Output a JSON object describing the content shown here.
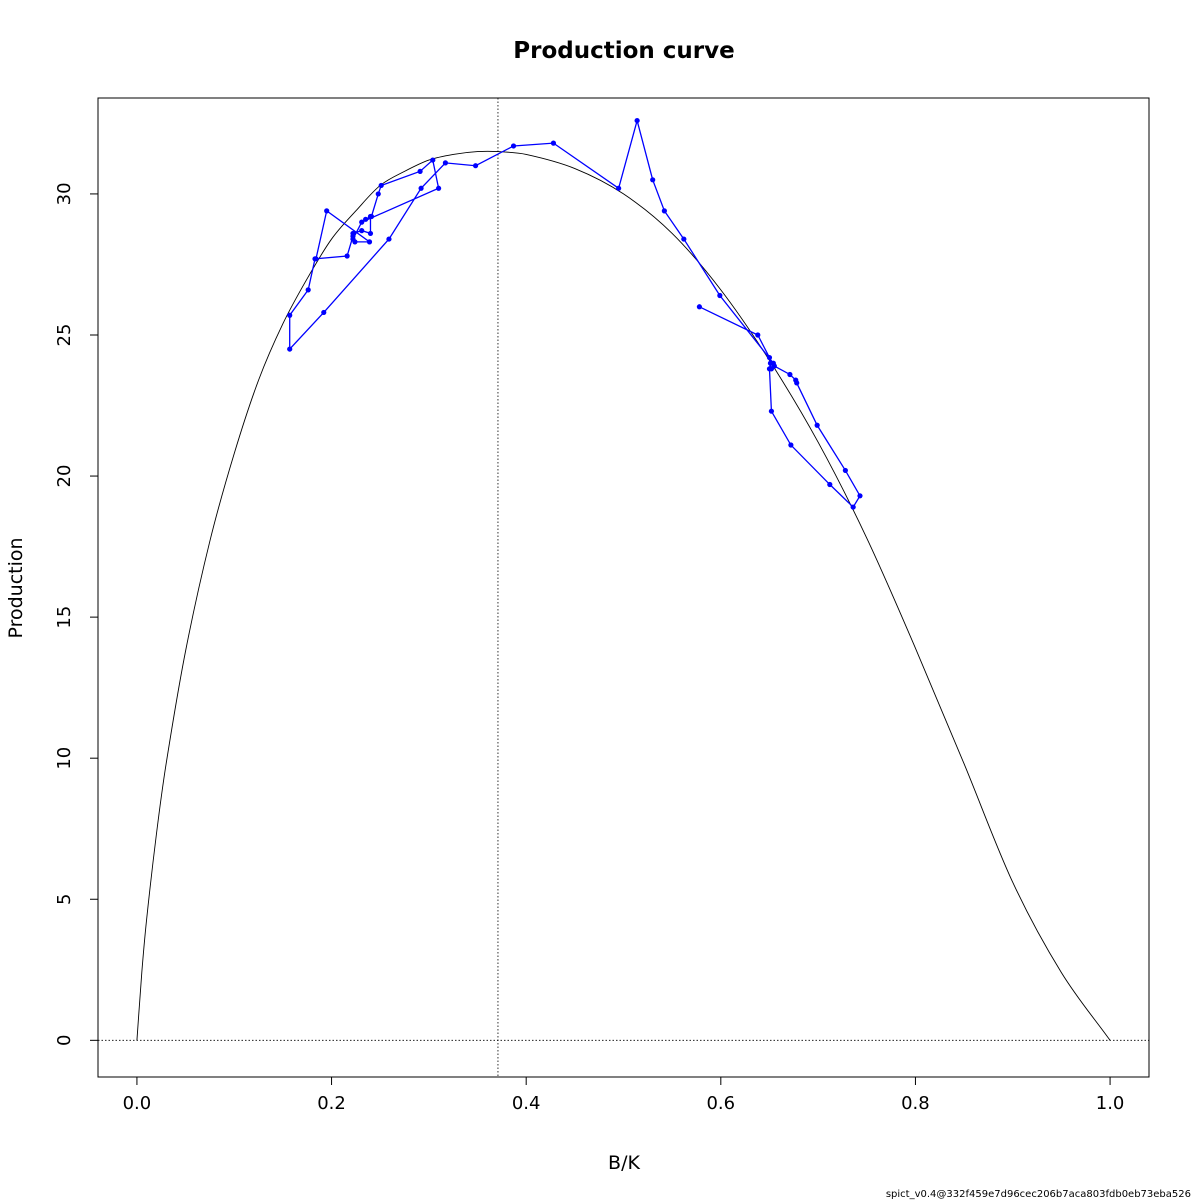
{
  "chart_data": {
    "type": "line",
    "title": "Production curve",
    "xlabel": "B/K",
    "ylabel": "Production",
    "xlim": [
      -0.04,
      1.04
    ],
    "ylim": [
      -1.3,
      33.4
    ],
    "x_ticks": [
      "0.0",
      "0.2",
      "0.4",
      "0.6",
      "0.8",
      "1.0"
    ],
    "y_ticks": [
      "0",
      "5",
      "10",
      "15",
      "20",
      "25",
      "30"
    ],
    "reference_lines": {
      "vertical_x": 0.371,
      "horizontal_y": 0
    },
    "colors": {
      "curve": "#000000",
      "trajectory": "#0000ff",
      "reference": "#000000"
    },
    "curve": {
      "peak_x": 0.371,
      "peak_y": 31.5,
      "x": [
        0,
        0.005,
        0.01,
        0.02,
        0.03,
        0.05,
        0.075,
        0.1,
        0.125,
        0.15,
        0.175,
        0.2,
        0.225,
        0.25,
        0.275,
        0.3,
        0.325,
        0.35,
        0.371,
        0.4,
        0.45,
        0.5,
        0.55,
        0.6,
        0.65,
        0.7,
        0.75,
        0.8,
        0.85,
        0.9,
        0.95,
        1.0
      ],
      "y": [
        0,
        2.4,
        4.3,
        7.3,
        9.8,
        13.8,
        17.7,
        20.8,
        23.4,
        25.4,
        27.0,
        28.4,
        29.4,
        30.3,
        30.8,
        31.2,
        31.4,
        31.5,
        31.5,
        31.4,
        30.9,
        30.0,
        28.6,
        26.6,
        24.1,
        21.2,
        17.8,
        13.9,
        9.8,
        5.6,
        2.4,
        0
      ]
    },
    "series": [
      {
        "x": [
          0.578,
          0.638,
          0.65,
          0.652,
          0.655,
          0.671,
          0.677,
          0.678,
          0.699,
          0.728,
          0.743,
          0.736,
          0.712,
          0.672,
          0.652,
          0.65,
          0.651,
          0.654,
          0.599,
          0.562,
          0.542,
          0.53,
          0.514,
          0.495,
          0.428,
          0.387,
          0.348,
          0.317,
          0.292,
          0.259,
          0.192,
          0.157,
          0.157,
          0.176,
          0.183,
          0.216,
          0.222,
          0.222,
          0.231,
          0.24,
          0.24,
          0.235,
          0.241,
          0.248,
          0.251,
          0.291,
          0.304,
          0.31,
          0.231,
          0.222,
          0.224,
          0.239,
          0.195,
          0.184
        ],
        "y": [
          26.0,
          25.0,
          24.2,
          23.8,
          23.9,
          23.6,
          23.4,
          23.3,
          21.8,
          20.2,
          19.3,
          18.9,
          19.7,
          21.1,
          22.3,
          23.8,
          24.0,
          24.0,
          26.4,
          28.4,
          29.4,
          30.5,
          32.6,
          30.2,
          31.8,
          31.7,
          31.0,
          31.1,
          30.2,
          28.4,
          25.8,
          24.5,
          25.7,
          26.6,
          27.7,
          27.8,
          28.5,
          28.6,
          28.7,
          28.6,
          29.2,
          29.1,
          29.2,
          30.0,
          30.3,
          30.8,
          31.2,
          30.2,
          29.0,
          28.4,
          28.3,
          28.3,
          29.4,
          27.7
        ]
      }
    ]
  },
  "footer": {
    "version_text": "spict_v0.4@332f459e7d96cec206b7aca803fdb0eb73eba526"
  }
}
